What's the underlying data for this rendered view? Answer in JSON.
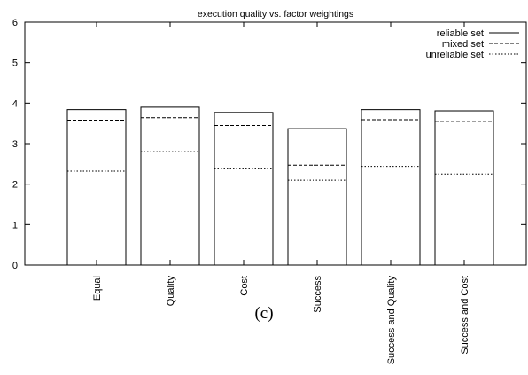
{
  "chart_data": {
    "type": "bar",
    "title": "execution quality vs. factor weightings",
    "xlabel": "",
    "ylabel": "",
    "ylim": [
      0,
      6
    ],
    "yticks": [
      0,
      1,
      2,
      3,
      4,
      5,
      6
    ],
    "grid": false,
    "legend_position": "top-right",
    "categories": [
      "Equal",
      "Quality",
      "Cost",
      "Success",
      "Success and Quality",
      "Success and Cost"
    ],
    "series": [
      {
        "name": "reliable set",
        "line_style": "solid",
        "values": [
          3.84,
          3.9,
          3.77,
          3.37,
          3.84,
          3.81
        ]
      },
      {
        "name": "mixed set",
        "line_style": "dashed",
        "values": [
          3.58,
          3.64,
          3.45,
          2.47,
          3.59,
          3.55
        ]
      },
      {
        "name": "unreliable set",
        "line_style": "dotted",
        "values": [
          2.32,
          2.8,
          2.38,
          2.1,
          2.44,
          2.25
        ]
      }
    ]
  },
  "caption": "(c)"
}
